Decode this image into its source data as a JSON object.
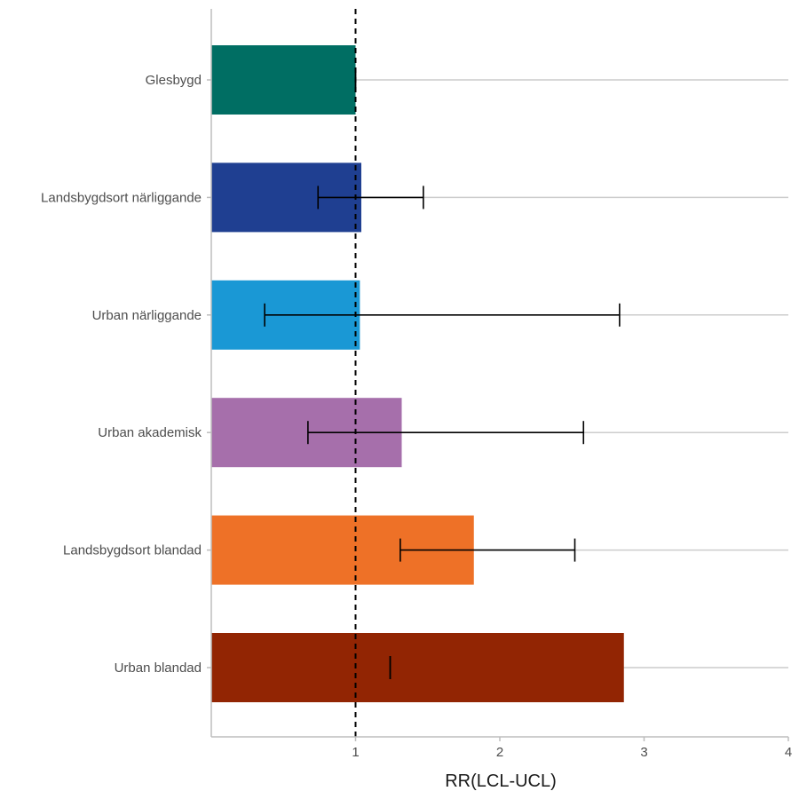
{
  "chart_data": {
    "type": "bar",
    "orientation": "horizontal",
    "title": "",
    "xlabel": "RR(LCL-UCL)",
    "ylabel": "",
    "xlim": [
      0,
      4
    ],
    "x_ticks": [
      "1",
      "2",
      "3",
      "4"
    ],
    "reference_line": {
      "x": 1,
      "style": "dashed"
    },
    "grid": "horizontal major lines",
    "legend": "none",
    "categories": [
      "Glesbygd",
      "Landsbygdsort närliggande",
      "Urban närliggande",
      "Urban akademisk",
      "Landsbygdsort blandad",
      "Urban blandad"
    ],
    "values": [
      1.0,
      1.04,
      1.03,
      1.32,
      1.82,
      2.86
    ],
    "error_bars": [
      {
        "lower": 1.0,
        "upper": 1.0
      },
      {
        "lower": 0.74,
        "upper": 1.47
      },
      {
        "lower": 0.37,
        "upper": 2.83
      },
      {
        "lower": 0.67,
        "upper": 2.58
      },
      {
        "lower": 1.31,
        "upper": 2.52
      },
      {
        "lower": 1.24,
        "upper": 1.24
      }
    ],
    "colors": [
      "#006e63",
      "#1f3f91",
      "#1a98d5",
      "#a66fab",
      "#ee7127",
      "#922503"
    ]
  }
}
